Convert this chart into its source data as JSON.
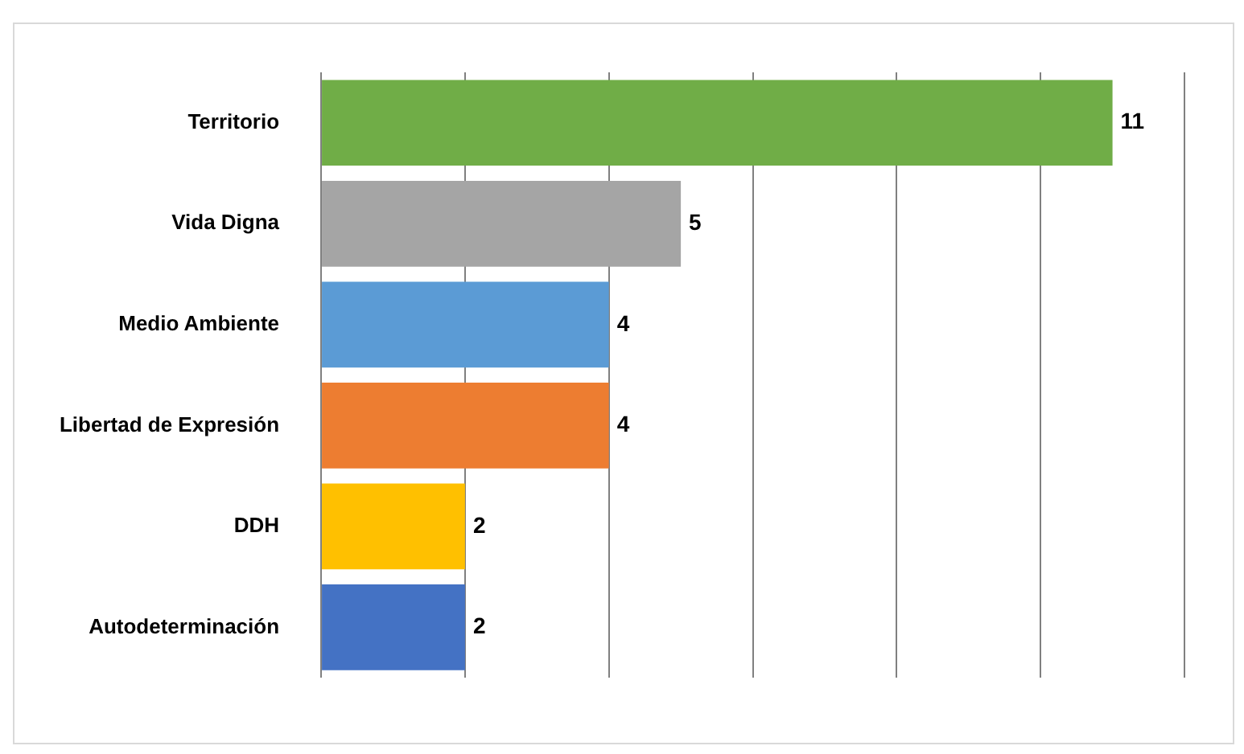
{
  "chart_data": {
    "type": "bar",
    "orientation": "horizontal",
    "categories": [
      "Territorio",
      "Vida Digna",
      "Medio Ambiente",
      "Libertad de Expresión",
      "DDH",
      "Autodeterminación"
    ],
    "values": [
      11,
      5,
      4,
      4,
      2,
      2
    ],
    "colors": [
      "#70ad47",
      "#a5a5a5",
      "#5b9bd5",
      "#ed7d31",
      "#ffc000",
      "#4472c4"
    ],
    "xlim": [
      0,
      12
    ],
    "xticks": [
      {
        "value": 0,
        "label": null
      },
      {
        "value": 2,
        "label": null
      },
      {
        "value": 4,
        "label": null
      },
      {
        "value": 6,
        "label": null
      },
      {
        "value": 8,
        "label": null
      },
      {
        "value": 10,
        "label": null
      },
      {
        "value": 12,
        "label": null
      }
    ],
    "grid": "x",
    "data_labels": true
  }
}
